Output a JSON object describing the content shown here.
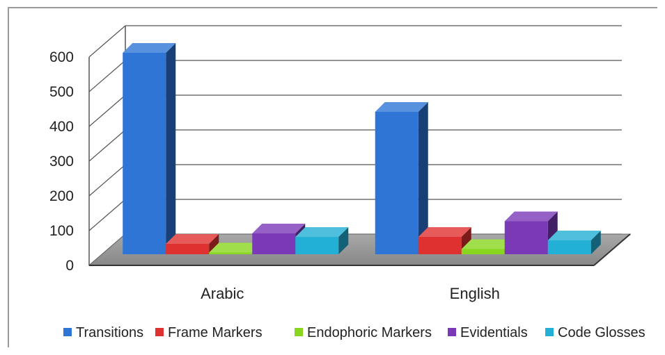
{
  "chart_data": {
    "type": "bar",
    "title": "",
    "xlabel": "",
    "ylabel": "",
    "categories": [
      "Arabic",
      "English"
    ],
    "ylim": [
      0,
      600
    ],
    "yticks": [
      0,
      100,
      200,
      300,
      400,
      500,
      600
    ],
    "series": [
      {
        "name": "Transitions",
        "values": [
          580,
          410
        ],
        "color": "#2e75d6"
      },
      {
        "name": "Frame Markers",
        "values": [
          30,
          50
        ],
        "color": "#e03131"
      },
      {
        "name": "Endophoric Markers",
        "values": [
          5,
          15
        ],
        "color": "#88d61e"
      },
      {
        "name": "Evidentials",
        "values": [
          60,
          95
        ],
        "color": "#7a3ab8"
      },
      {
        "name": "Code Glosses",
        "values": [
          50,
          40
        ],
        "color": "#22b0d6"
      }
    ],
    "grid": true,
    "legend_position": "bottom",
    "style": "3d-clustered-column"
  }
}
